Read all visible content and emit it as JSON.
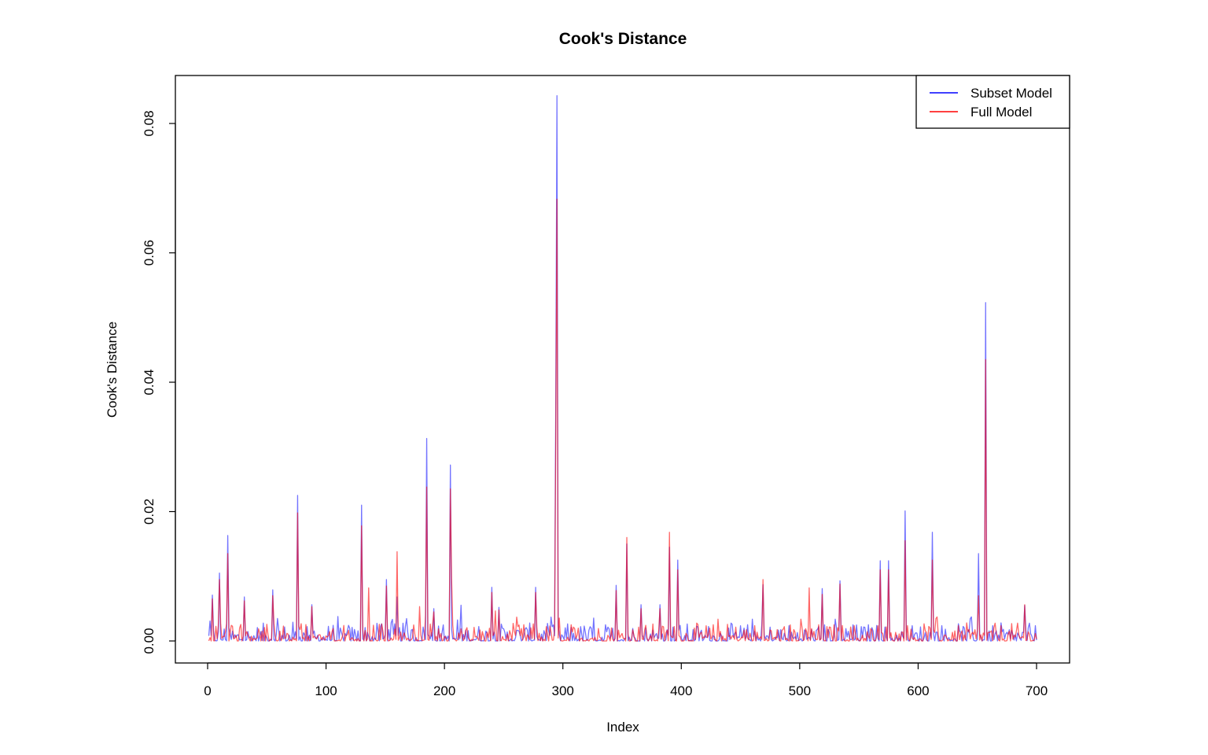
{
  "chart_data": {
    "type": "line",
    "title": "Cook's Distance",
    "xlabel": "Index",
    "ylabel": "Cook's Distance",
    "xlim": [
      0,
      700
    ],
    "ylim": [
      0,
      0.085
    ],
    "x_ticks": [
      "0",
      "100",
      "200",
      "300",
      "400",
      "500",
      "600",
      "700"
    ],
    "y_ticks": [
      "0.00",
      "0.02",
      "0.04",
      "0.06",
      "0.08"
    ],
    "legend_position": "top-right",
    "series": [
      {
        "name": "Subset Model",
        "color": "#0000ff",
        "spikes": [
          [
            4,
            0.0071
          ],
          [
            10,
            0.0105
          ],
          [
            17,
            0.0163
          ],
          [
            31,
            0.0068
          ],
          [
            55,
            0.0079
          ],
          [
            76,
            0.0225
          ],
          [
            88,
            0.0056
          ],
          [
            130,
            0.021
          ],
          [
            151,
            0.0095
          ],
          [
            160,
            0.0068
          ],
          [
            185,
            0.0313
          ],
          [
            191,
            0.005
          ],
          [
            205,
            0.0272
          ],
          [
            240,
            0.0083
          ],
          [
            246,
            0.0052
          ],
          [
            277,
            0.0083
          ],
          [
            294,
            0.0373
          ],
          [
            295,
            0.0843
          ],
          [
            345,
            0.0086
          ],
          [
            354,
            0.015
          ],
          [
            366,
            0.0056
          ],
          [
            382,
            0.0056
          ],
          [
            390,
            0.0145
          ],
          [
            397,
            0.0125
          ],
          [
            469,
            0.0087
          ],
          [
            519,
            0.0081
          ],
          [
            534,
            0.0093
          ],
          [
            568,
            0.0124
          ],
          [
            575,
            0.0124
          ],
          [
            589,
            0.0201
          ],
          [
            612,
            0.0168
          ],
          [
            651,
            0.0135
          ],
          [
            657,
            0.0523
          ],
          [
            690,
            0.0055
          ]
        ]
      },
      {
        "name": "Full Model",
        "color": "#ff0000",
        "spikes": [
          [
            4,
            0.0065
          ],
          [
            10,
            0.0095
          ],
          [
            17,
            0.0135
          ],
          [
            31,
            0.0062
          ],
          [
            55,
            0.007
          ],
          [
            76,
            0.0198
          ],
          [
            88,
            0.0053
          ],
          [
            130,
            0.0178
          ],
          [
            136,
            0.0082
          ],
          [
            151,
            0.0085
          ],
          [
            160,
            0.0138
          ],
          [
            185,
            0.0238
          ],
          [
            191,
            0.0045
          ],
          [
            205,
            0.0235
          ],
          [
            206,
            0.0098
          ],
          [
            240,
            0.0075
          ],
          [
            246,
            0.0048
          ],
          [
            277,
            0.0075
          ],
          [
            294,
            0.0315
          ],
          [
            295,
            0.0683
          ],
          [
            345,
            0.0078
          ],
          [
            354,
            0.016
          ],
          [
            366,
            0.005
          ],
          [
            382,
            0.005
          ],
          [
            390,
            0.0168
          ],
          [
            397,
            0.011
          ],
          [
            469,
            0.0095
          ],
          [
            508,
            0.0082
          ],
          [
            519,
            0.0072
          ],
          [
            534,
            0.0088
          ],
          [
            568,
            0.011
          ],
          [
            575,
            0.011
          ],
          [
            589,
            0.0155
          ],
          [
            612,
            0.0125
          ],
          [
            651,
            0.007
          ],
          [
            657,
            0.0435
          ],
          [
            690,
            0.0056
          ]
        ]
      }
    ]
  }
}
